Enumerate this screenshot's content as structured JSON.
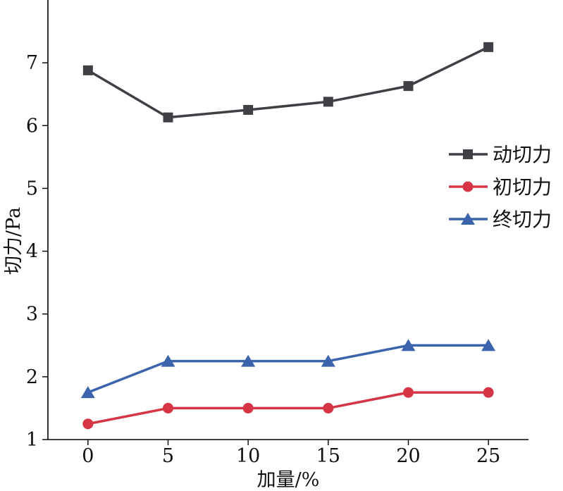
{
  "chart_data": {
    "type": "line",
    "title": "",
    "xlabel": "加量/%",
    "ylabel": "切力/Pa",
    "x": [
      0,
      5,
      10,
      15,
      20,
      25
    ],
    "xlim": [
      -2.5,
      27.5
    ],
    "ylim": [
      1,
      8
    ],
    "xticks": [
      "0",
      "5",
      "10",
      "15",
      "20",
      "25"
    ],
    "yticks": [
      "1",
      "2",
      "3",
      "4",
      "5",
      "6",
      "7"
    ],
    "grid": false,
    "legend_position": "right",
    "series": [
      {
        "name": "动切力",
        "values": [
          6.88,
          6.13,
          6.25,
          6.38,
          6.63,
          7.25
        ],
        "color": "#3f3f46",
        "marker": "square"
      },
      {
        "name": "初切力",
        "values": [
          1.25,
          1.5,
          1.5,
          1.5,
          1.75,
          1.75
        ],
        "color": "#d63545",
        "marker": "circle"
      },
      {
        "name": "终切力",
        "values": [
          1.75,
          2.25,
          2.25,
          2.25,
          2.5,
          2.5
        ],
        "color": "#3c64ad",
        "marker": "triangle"
      }
    ]
  }
}
